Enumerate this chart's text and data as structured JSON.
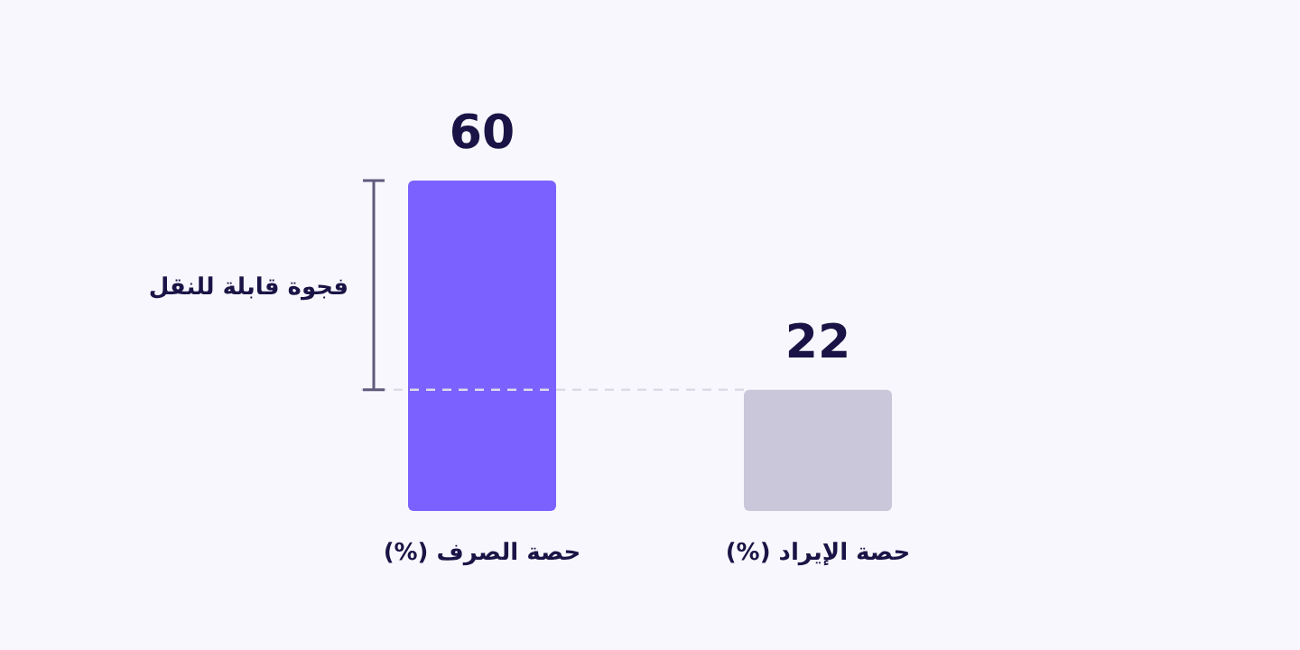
{
  "chart_data": {
    "type": "bar",
    "categories": [
      "حصة الصرف (%)",
      "حصة الإيراد (%)"
    ],
    "values": [
      60,
      22
    ],
    "colors": [
      "#7b61ff",
      "#c9c7d9"
    ],
    "data_labels": true,
    "ref_lines": [
      {
        "axis": "y",
        "value": 22,
        "line_style": "dashed",
        "color": "#dcdbe8"
      }
    ],
    "annotations": [
      "فجوة قابلة للنقل"
    ]
  }
}
